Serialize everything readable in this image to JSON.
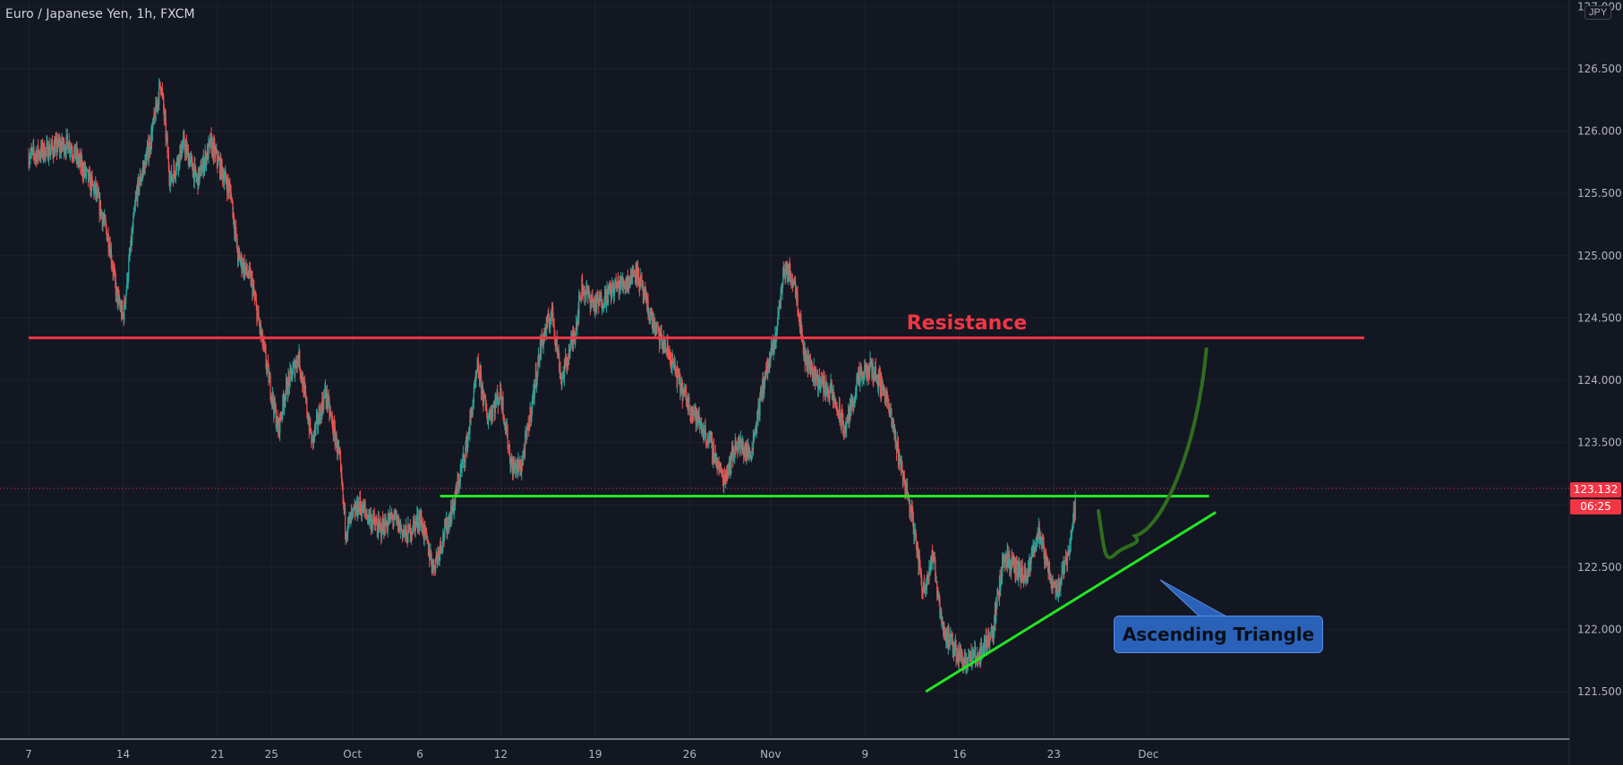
{
  "header": {
    "symbol": "Euro / Japanese Yen, 1h, FXCM",
    "currency": "JPY"
  },
  "price_axis": {
    "current_price": "123.132",
    "countdown": "06:25"
  },
  "colors": {
    "background": "#131722",
    "up": "#26a69a",
    "down": "#ef5350",
    "resistance": "#f23645",
    "support": "#22e622",
    "projection": "#2e6e1e"
  },
  "annotations": {
    "resistance": "Resistance",
    "pattern": "Ascending Triangle"
  },
  "chart_data": {
    "type": "candlestick",
    "instrument": "EUR/JPY",
    "timeframe": "1h",
    "y_ticks": [
      121.5,
      122.0,
      122.5,
      123.0,
      123.5,
      124.0,
      124.5,
      125.0,
      125.5,
      126.0,
      126.5,
      127.0
    ],
    "ylim": [
      121.2,
      127.0
    ],
    "x_ticks": [
      "7",
      "14",
      "21",
      "25",
      "Oct",
      "6",
      "12",
      "19",
      "26",
      "Nov",
      "9",
      "16",
      "23",
      "Dec"
    ],
    "grid": true,
    "price_path": [
      {
        "d": 0,
        "p": 125.8
      },
      {
        "d": 3,
        "p": 125.9
      },
      {
        "d": 5,
        "p": 125.5
      },
      {
        "d": 6,
        "p": 125.1
      },
      {
        "d": 6.5,
        "p": 124.7
      },
      {
        "d": 7,
        "p": 124.5
      },
      {
        "d": 8,
        "p": 125.5
      },
      {
        "d": 9,
        "p": 125.9
      },
      {
        "d": 9.8,
        "p": 126.4
      },
      {
        "d": 10.5,
        "p": 125.6
      },
      {
        "d": 11.5,
        "p": 125.9
      },
      {
        "d": 12.5,
        "p": 125.6
      },
      {
        "d": 13.5,
        "p": 125.9
      },
      {
        "d": 15,
        "p": 125.5
      },
      {
        "d": 15.5,
        "p": 125.0
      },
      {
        "d": 16.5,
        "p": 124.8
      },
      {
        "d": 17.5,
        "p": 124.2
      },
      {
        "d": 18.5,
        "p": 123.6
      },
      {
        "d": 19,
        "p": 123.9
      },
      {
        "d": 20,
        "p": 124.2
      },
      {
        "d": 21,
        "p": 123.5
      },
      {
        "d": 22,
        "p": 123.9
      },
      {
        "d": 23,
        "p": 123.4
      },
      {
        "d": 23.5,
        "p": 122.8
      },
      {
        "d": 24.5,
        "p": 123.0
      },
      {
        "d": 26,
        "p": 122.8
      },
      {
        "d": 27,
        "p": 122.9
      },
      {
        "d": 28,
        "p": 122.75
      },
      {
        "d": 29,
        "p": 122.9
      },
      {
        "d": 30,
        "p": 122.5
      },
      {
        "d": 31.5,
        "p": 123.0
      },
      {
        "d": 32.5,
        "p": 123.5
      },
      {
        "d": 33.3,
        "p": 124.1
      },
      {
        "d": 34,
        "p": 123.7
      },
      {
        "d": 35,
        "p": 123.9
      },
      {
        "d": 35.8,
        "p": 123.3
      },
      {
        "d": 36.5,
        "p": 123.3
      },
      {
        "d": 37,
        "p": 123.6
      },
      {
        "d": 38,
        "p": 124.3
      },
      {
        "d": 38.8,
        "p": 124.55
      },
      {
        "d": 39.5,
        "p": 124.0
      },
      {
        "d": 40.5,
        "p": 124.4
      },
      {
        "d": 41,
        "p": 124.75
      },
      {
        "d": 42,
        "p": 124.6
      },
      {
        "d": 43.5,
        "p": 124.75
      },
      {
        "d": 44.5,
        "p": 124.8
      },
      {
        "d": 45,
        "p": 124.9
      },
      {
        "d": 45.8,
        "p": 124.6
      },
      {
        "d": 46.5,
        "p": 124.4
      },
      {
        "d": 47.5,
        "p": 124.2
      },
      {
        "d": 48.5,
        "p": 123.9
      },
      {
        "d": 49.5,
        "p": 123.7
      },
      {
        "d": 50.5,
        "p": 123.5
      },
      {
        "d": 51.5,
        "p": 123.2
      },
      {
        "d": 52.5,
        "p": 123.5
      },
      {
        "d": 53.5,
        "p": 123.4
      },
      {
        "d": 54.5,
        "p": 124.0
      },
      {
        "d": 55.3,
        "p": 124.3
      },
      {
        "d": 56,
        "p": 124.9
      },
      {
        "d": 56.8,
        "p": 124.8
      },
      {
        "d": 57.5,
        "p": 124.2
      },
      {
        "d": 58.5,
        "p": 124.0
      },
      {
        "d": 59.5,
        "p": 123.9
      },
      {
        "d": 60.5,
        "p": 123.6
      },
      {
        "d": 61.5,
        "p": 124.0
      },
      {
        "d": 62.5,
        "p": 124.1
      },
      {
        "d": 63.5,
        "p": 123.9
      },
      {
        "d": 64.5,
        "p": 123.4
      },
      {
        "d": 65.5,
        "p": 122.9
      },
      {
        "d": 66.3,
        "p": 122.3
      },
      {
        "d": 67,
        "p": 122.6
      },
      {
        "d": 67.8,
        "p": 122.0
      },
      {
        "d": 68.5,
        "p": 121.85
      },
      {
        "d": 69.5,
        "p": 121.75
      },
      {
        "d": 70.5,
        "p": 121.8
      },
      {
        "d": 71.5,
        "p": 122.0
      },
      {
        "d": 72.3,
        "p": 122.6
      },
      {
        "d": 73,
        "p": 122.5
      },
      {
        "d": 74,
        "p": 122.4
      },
      {
        "d": 74.8,
        "p": 122.8
      },
      {
        "d": 75.5,
        "p": 122.5
      },
      {
        "d": 76.2,
        "p": 122.3
      },
      {
        "d": 77,
        "p": 122.6
      },
      {
        "d": 77.6,
        "p": 123.0
      }
    ],
    "lines": [
      {
        "name": "Resistance",
        "type": "horizontal",
        "price": 124.34,
        "from_d": 0,
        "to_d": 99
      },
      {
        "name": "Support",
        "type": "horizontal",
        "price": 123.07,
        "from_d": 30.5,
        "to_d": 87.5
      },
      {
        "name": "Ascending trendline",
        "type": "trend",
        "from": [
          66.5,
          121.5
        ],
        "to": [
          88,
          122.94
        ]
      }
    ],
    "projection": [
      [
        79.3,
        122.95
      ],
      [
        80.5,
        122.6
      ],
      [
        82,
        122.75
      ],
      [
        84.5,
        123.1
      ],
      [
        87.3,
        124.25
      ]
    ],
    "labels": [
      "Resistance",
      "Ascending Triangle"
    ]
  }
}
